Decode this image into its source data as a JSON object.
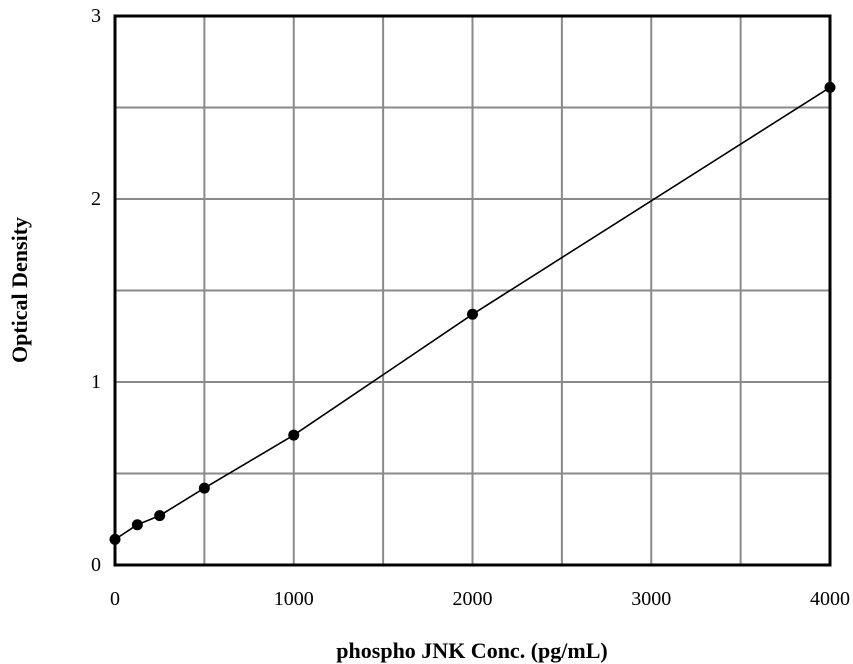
{
  "chart_data": {
    "type": "scatter",
    "title": "",
    "xlabel": "phospho JNK Conc. (pg/mL)",
    "ylabel": "Optical Density",
    "xlim": [
      0,
      4000
    ],
    "ylim": [
      0,
      3
    ],
    "x_ticks": [
      0,
      1000,
      2000,
      3000,
      4000
    ],
    "y_ticks": [
      0,
      1,
      2,
      3
    ],
    "x_gridlines": [
      0,
      500,
      1000,
      1500,
      2000,
      2500,
      3000,
      3500,
      4000
    ],
    "y_gridlines": [
      0,
      0.5,
      1,
      1.5,
      2,
      2.5,
      3
    ],
    "grid": true,
    "legend": "none",
    "series": [
      {
        "x": [
          0,
          125,
          250,
          500,
          1000,
          2000,
          4000
        ],
        "y": [
          0.14,
          0.22,
          0.27,
          0.42,
          0.71,
          1.37,
          2.61
        ],
        "marker": "filled-circle",
        "fit_line": true,
        "color": "#000000"
      }
    ]
  }
}
